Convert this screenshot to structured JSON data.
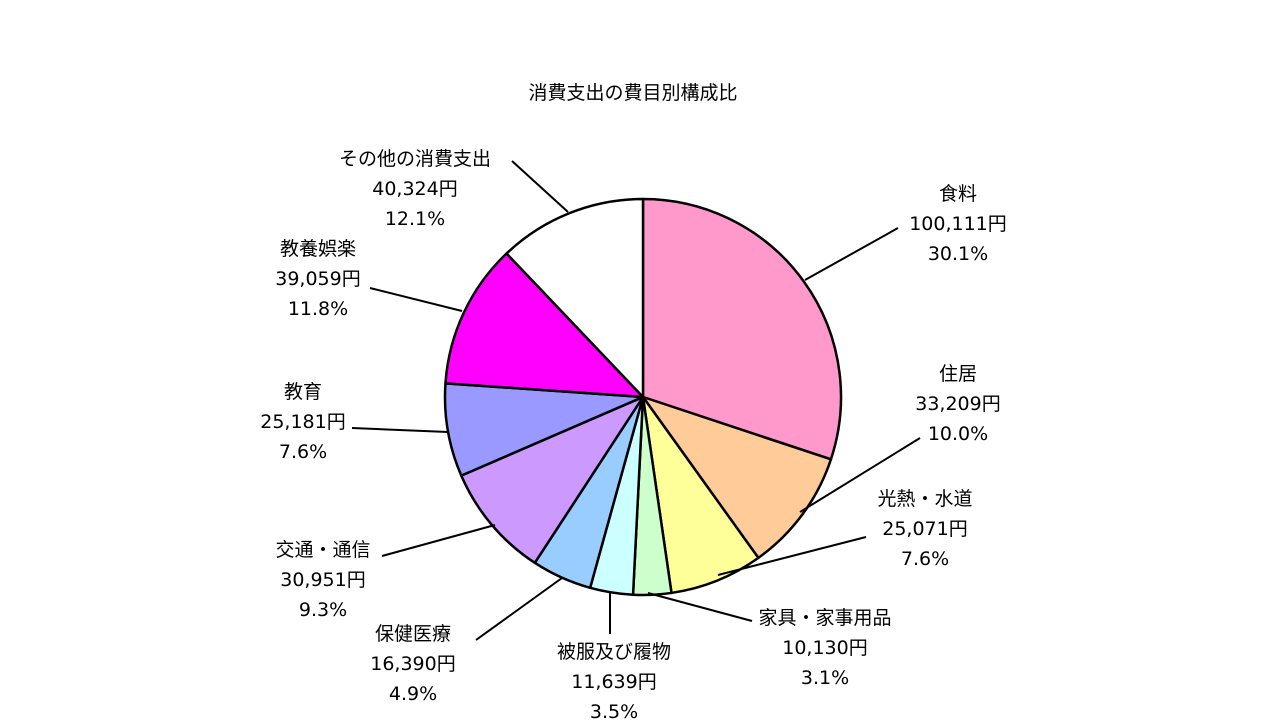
{
  "chart_data": {
    "type": "pie",
    "title": "消費支出の費目別構成比",
    "start": "12 o'clock",
    "direction": "clockwise",
    "slices": [
      {
        "name": "食料",
        "amount": "100,111円",
        "percent": "30.1%",
        "value": 30.1,
        "color": "#FF99CC"
      },
      {
        "name": "住居",
        "amount": "33,209円",
        "percent": "10.0%",
        "value": 10.0,
        "color": "#FFCC99"
      },
      {
        "name": "光熱・水道",
        "amount": "25,071円",
        "percent": "7.6%",
        "value": 7.6,
        "color": "#FFFF99"
      },
      {
        "name": "家具・家事用品",
        "amount": "10,130円",
        "percent": "3.1%",
        "value": 3.1,
        "color": "#CCFFCC"
      },
      {
        "name": "被服及び履物",
        "amount": "11,639円",
        "percent": "3.5%",
        "value": 3.5,
        "color": "#CCFFFF"
      },
      {
        "name": "保健医療",
        "amount": "16,390円",
        "percent": "4.9%",
        "value": 4.9,
        "color": "#99CCFF"
      },
      {
        "name": "交通・通信",
        "amount": "30,951円",
        "percent": "9.3%",
        "value": 9.3,
        "color": "#CC99FF"
      },
      {
        "name": "教育",
        "amount": "25,181円",
        "percent": "7.6%",
        "value": 7.6,
        "color": "#9999FF"
      },
      {
        "name": "教養娯楽",
        "amount": "39,059円",
        "percent": "11.8%",
        "value": 11.8,
        "color": "#FF00FF"
      },
      {
        "name": "その他の消費支出",
        "amount": "40,324円",
        "percent": "12.1%",
        "value": 12.1,
        "color": "#FFFFFF"
      }
    ]
  }
}
